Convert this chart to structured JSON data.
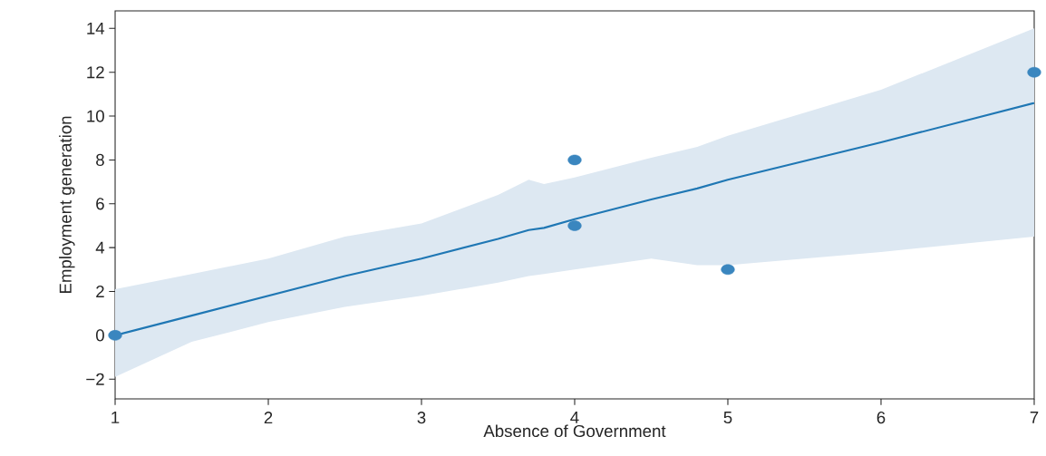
{
  "chart_data": {
    "type": "scatter",
    "xlabel": "Absence of Government",
    "ylabel": "Employment generation",
    "xlim": [
      1,
      7
    ],
    "ylim": [
      -2.9,
      14.8
    ],
    "xticks": [
      1,
      2,
      3,
      4,
      5,
      6,
      7
    ],
    "yticks": [
      {
        "value": -2,
        "label": "−2"
      },
      0,
      2,
      4,
      6,
      8,
      10,
      12,
      14
    ],
    "series": [
      {
        "marker": "circle",
        "color": "#3a86bf",
        "x": [
          1,
          4,
          4,
          5,
          7
        ],
        "values": [
          0,
          8,
          5,
          3,
          12
        ]
      },
      {
        "type": "line",
        "marker": "none",
        "color": "#1f77b4",
        "x": [
          1,
          1.5,
          2,
          2.5,
          3,
          3.5,
          3.7,
          3.8,
          4,
          4.5,
          4.8,
          5,
          6,
          7
        ],
        "values": [
          0,
          0.9,
          1.8,
          2.7,
          3.5,
          4.4,
          4.8,
          4.9,
          5.3,
          6.2,
          6.7,
          7.1,
          8.8,
          10.6
        ],
        "lower": [
          -1.9,
          -0.3,
          0.6,
          1.3,
          1.8,
          2.4,
          2.7,
          2.8,
          3.0,
          3.5,
          3.2,
          3.2,
          3.8,
          4.5
        ],
        "upper": [
          2.1,
          2.8,
          3.5,
          4.5,
          5.1,
          6.4,
          7.1,
          6.9,
          7.2,
          8.1,
          8.6,
          9.1,
          11.2,
          14.0
        ]
      }
    ]
  }
}
